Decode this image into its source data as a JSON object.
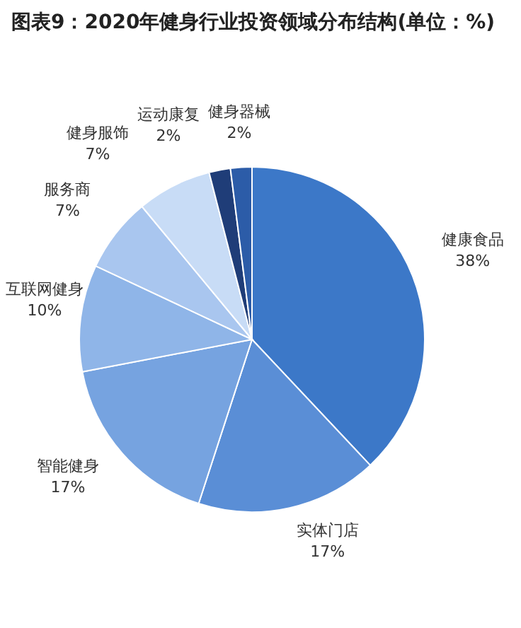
{
  "chart_data": {
    "type": "pie",
    "title": "图表9：2020年健身行业投资领域分布结构(单位：%)",
    "categories": [
      "健康食品",
      "实体门店",
      "智能健身",
      "互联网健身",
      "服务商",
      "健身服饰",
      "运动康复",
      "健身器械"
    ],
    "values": [
      38,
      17,
      17,
      10,
      7,
      7,
      2,
      2
    ],
    "value_labels": [
      "38%",
      "17%",
      "17%",
      "10%",
      "7%",
      "7%",
      "2%",
      "2%"
    ],
    "colors": [
      "#3c78c8",
      "#5a8ed6",
      "#76a3e0",
      "#8fb5e8",
      "#a9c6ef",
      "#c8dcf6",
      "#1f3d78",
      "#2c5ca8"
    ]
  }
}
